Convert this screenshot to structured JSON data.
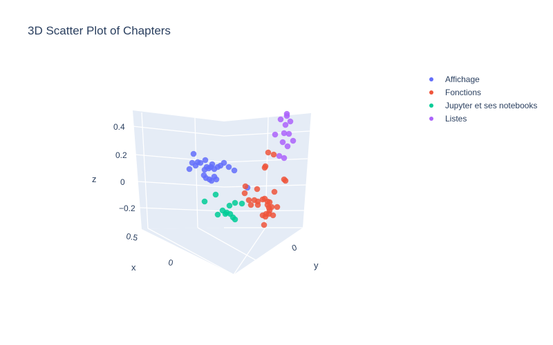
{
  "chart_data": {
    "type": "scatter3d",
    "title": "3D Scatter Plot of Chapters",
    "axes": {
      "x": {
        "label": "x",
        "ticks": [
          "0.5",
          "0"
        ]
      },
      "y": {
        "label": "y",
        "ticks": [
          "0"
        ]
      },
      "z": {
        "label": "z",
        "ticks": [
          "0.4",
          "0.2",
          "0",
          "−0.2"
        ]
      }
    },
    "legend_position": "top-right",
    "series": [
      {
        "name": "Affichage",
        "color": "#636efa",
        "points": [
          [
            280,
            223
          ],
          [
            286,
            235
          ],
          [
            278,
            236
          ],
          [
            283,
            240
          ],
          [
            290,
            236
          ],
          [
            297,
            232
          ],
          [
            299,
            242
          ],
          [
            296,
            246
          ],
          [
            302,
            244
          ],
          [
            305,
            242
          ],
          [
            307,
            238
          ],
          [
            310,
            245
          ],
          [
            315,
            242
          ],
          [
            319,
            240
          ],
          [
            324,
            236
          ],
          [
            331,
            242
          ],
          [
            339,
            247
          ],
          [
            274,
            245
          ],
          [
            295,
            254
          ],
          [
            298,
            258
          ],
          [
            303,
            260
          ],
          [
            306,
            262
          ],
          [
            310,
            256
          ],
          [
            313,
            260
          ],
          [
            358,
            272
          ]
        ]
      },
      {
        "name": "Fonctions",
        "color": "#ef553b",
        "points": [
          [
            388,
            221
          ],
          [
            396,
            224
          ],
          [
            384,
            241
          ],
          [
            383,
            243
          ],
          [
            411,
            260
          ],
          [
            413,
            262
          ],
          [
            355,
            270
          ],
          [
            372,
            274
          ],
          [
            397,
            278
          ],
          [
            354,
            280
          ],
          [
            360,
            290
          ],
          [
            368,
            290
          ],
          [
            373,
            292
          ],
          [
            380,
            289
          ],
          [
            383,
            288
          ],
          [
            387,
            292
          ],
          [
            390,
            293
          ],
          [
            363,
            297
          ],
          [
            373,
            297
          ],
          [
            387,
            297
          ],
          [
            393,
            300
          ],
          [
            401,
            300
          ],
          [
            389,
            301
          ],
          [
            390,
            305
          ],
          [
            389,
            310
          ],
          [
            385,
            310
          ],
          [
            395,
            312
          ],
          [
            380,
            312
          ],
          [
            384,
            314
          ],
          [
            382,
            326
          ]
        ]
      },
      {
        "name": "Jupyter et ses notebooks",
        "color": "#00cc96",
        "points": [
          [
            312,
            282
          ],
          [
            296,
            292
          ],
          [
            340,
            294
          ],
          [
            350,
            295
          ],
          [
            332,
            298
          ],
          [
            322,
            305
          ],
          [
            328,
            308
          ],
          [
            315,
            311
          ],
          [
            326,
            310
          ],
          [
            333,
            310
          ],
          [
            337,
            315
          ],
          [
            340,
            318
          ]
        ]
      },
      {
        "name": "Listes",
        "color": "#ab63fa",
        "points": [
          [
            415,
            165
          ],
          [
            415,
            168
          ],
          [
            406,
            173
          ],
          [
            420,
            176
          ],
          [
            413,
            181
          ],
          [
            398,
            195
          ],
          [
            411,
            193
          ],
          [
            418,
            194
          ],
          [
            424,
            204
          ],
          [
            409,
            206
          ],
          [
            416,
            212
          ],
          [
            404,
            226
          ],
          [
            411,
            229
          ]
        ]
      }
    ]
  }
}
